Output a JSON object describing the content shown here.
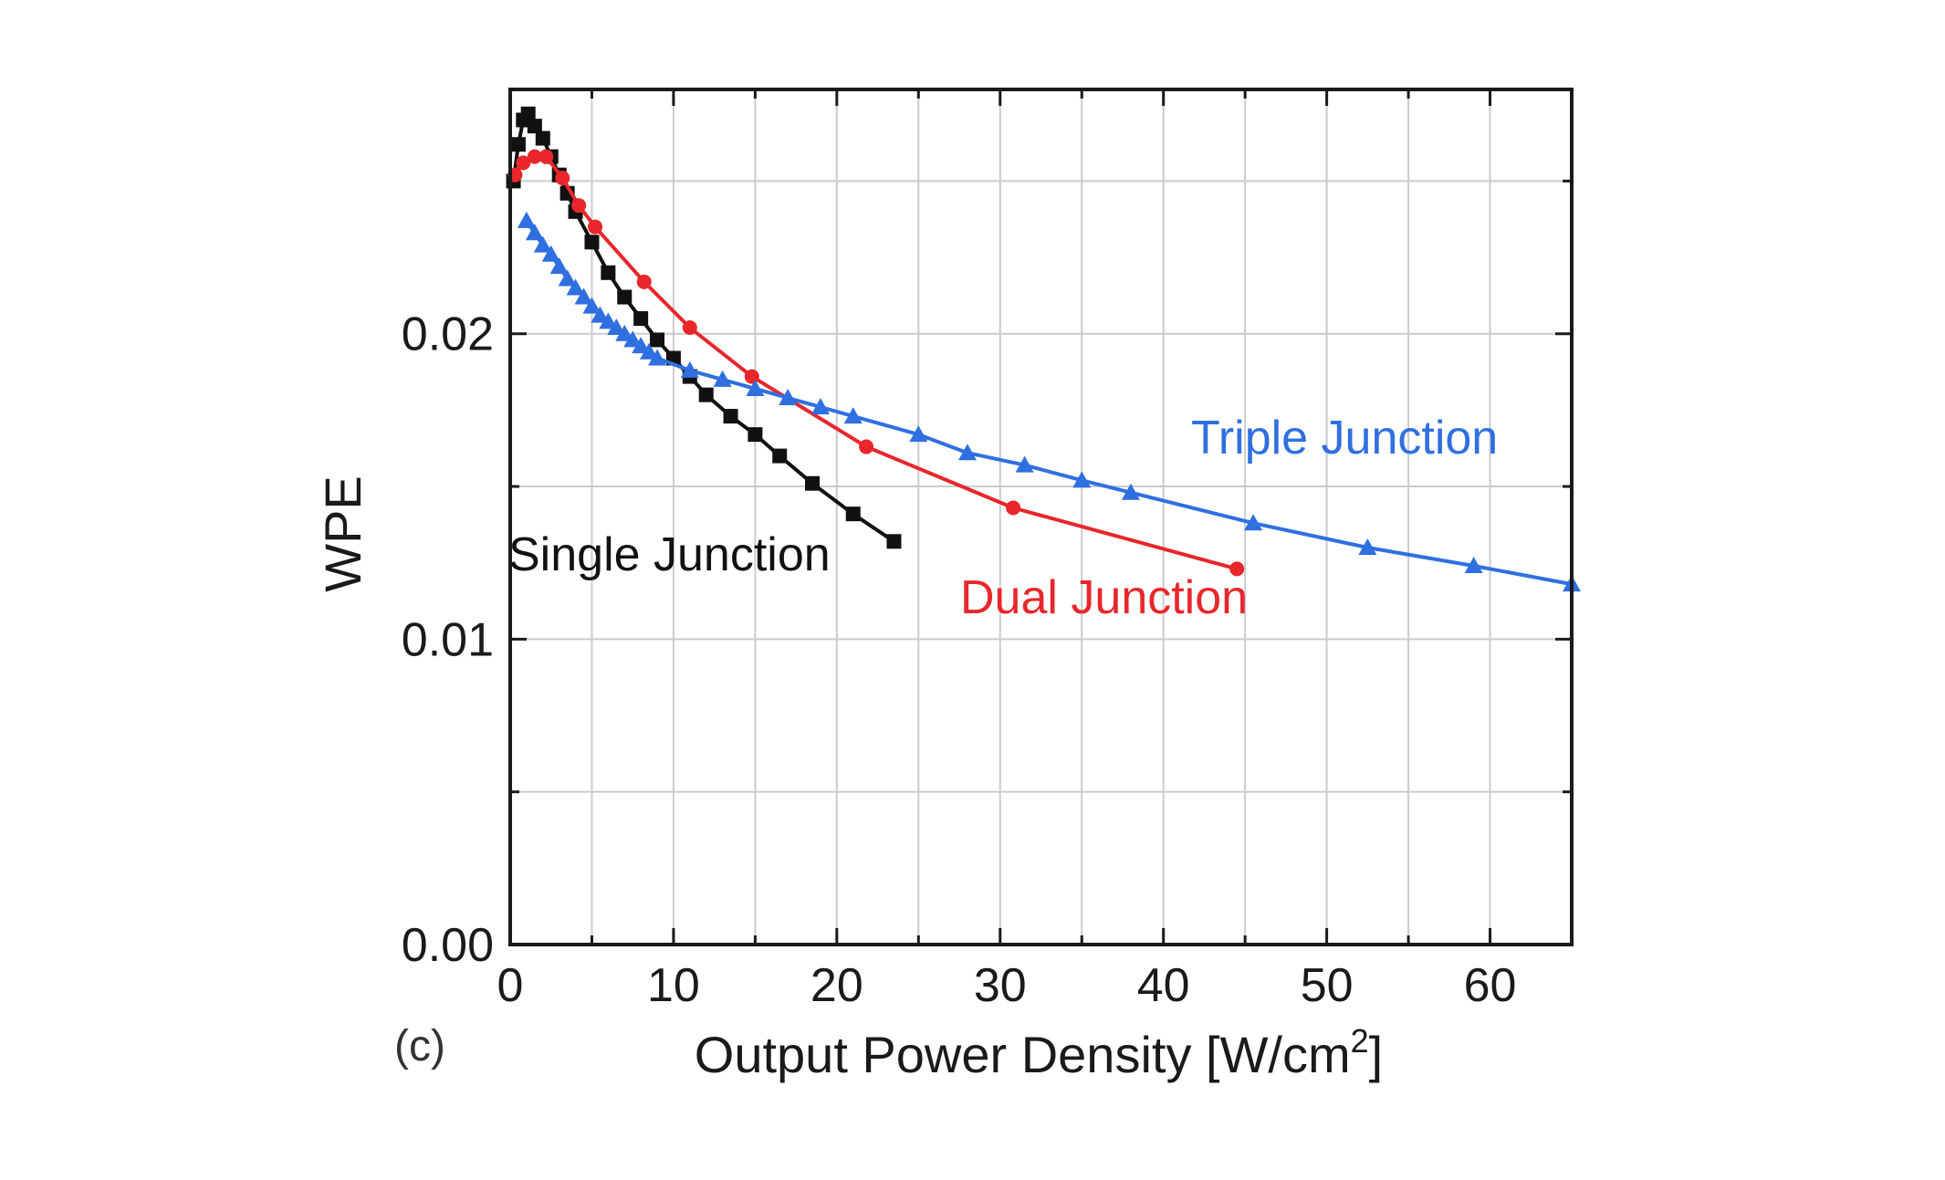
{
  "chart_data": {
    "type": "line",
    "xlabel": "Output Power Density [W/cm",
    "xlabel_sup": "2",
    "xlabel_end": "]",
    "ylabel": "WPE",
    "xlim": [
      0,
      65
    ],
    "ylim": [
      0,
      0.028
    ],
    "xticks": [
      0,
      10,
      20,
      30,
      40,
      50,
      60
    ],
    "xtick_labels": [
      "0",
      "10",
      "20",
      "30",
      "40",
      "50",
      "60"
    ],
    "yticks": [
      0,
      0.01,
      0.02
    ],
    "ytick_labels": [
      "0.00",
      "0.01",
      "0.02"
    ],
    "grid": true,
    "panel_label": "(c)",
    "series": [
      {
        "name": "Single Junction",
        "color": "#111111",
        "marker": "square",
        "x": [
          0.2,
          0.5,
          0.8,
          1.1,
          1.5,
          2.0,
          2.5,
          3.0,
          3.5,
          4.0,
          5.0,
          6.0,
          7.0,
          8.0,
          9.0,
          10.0,
          11.0,
          12.0,
          13.5,
          15.0,
          16.5,
          18.5,
          21.0,
          23.5
        ],
        "y": [
          0.025,
          0.0262,
          0.027,
          0.0272,
          0.0268,
          0.0264,
          0.0258,
          0.0252,
          0.0246,
          0.024,
          0.023,
          0.022,
          0.0212,
          0.0205,
          0.0198,
          0.0192,
          0.0186,
          0.018,
          0.0173,
          0.0167,
          0.016,
          0.0151,
          0.0141,
          0.0132
        ]
      },
      {
        "name": "Dual Junction",
        "color": "#e8262b",
        "marker": "circle",
        "x": [
          0.3,
          0.8,
          1.5,
          2.2,
          3.2,
          4.2,
          5.2,
          8.2,
          11.0,
          14.8,
          21.8,
          30.8,
          44.5
        ],
        "y": [
          0.0252,
          0.0256,
          0.0258,
          0.0258,
          0.0251,
          0.0242,
          0.0235,
          0.0217,
          0.0202,
          0.0186,
          0.0163,
          0.0143,
          0.0123
        ]
      },
      {
        "name": "Triple Junction",
        "color": "#2f6fe0",
        "marker": "triangle",
        "x": [
          1.0,
          1.5,
          2.0,
          2.5,
          3.0,
          3.5,
          4.0,
          4.5,
          5.0,
          5.5,
          6.0,
          6.5,
          7.0,
          7.5,
          8.0,
          8.5,
          9.0,
          11.0,
          13.0,
          15.0,
          17.0,
          19.0,
          21.0,
          25.0,
          28.0,
          31.5,
          35.0,
          38.0,
          45.5,
          52.5,
          59.0,
          65.0
        ],
        "y": [
          0.0237,
          0.0233,
          0.0229,
          0.0226,
          0.0222,
          0.0218,
          0.0215,
          0.0212,
          0.0209,
          0.0206,
          0.0204,
          0.0202,
          0.02,
          0.0198,
          0.0196,
          0.0194,
          0.0192,
          0.0188,
          0.0185,
          0.0182,
          0.0179,
          0.0176,
          0.0173,
          0.0167,
          0.0161,
          0.0157,
          0.0152,
          0.0148,
          0.0138,
          0.013,
          0.0124,
          0.0118
        ]
      }
    ]
  }
}
